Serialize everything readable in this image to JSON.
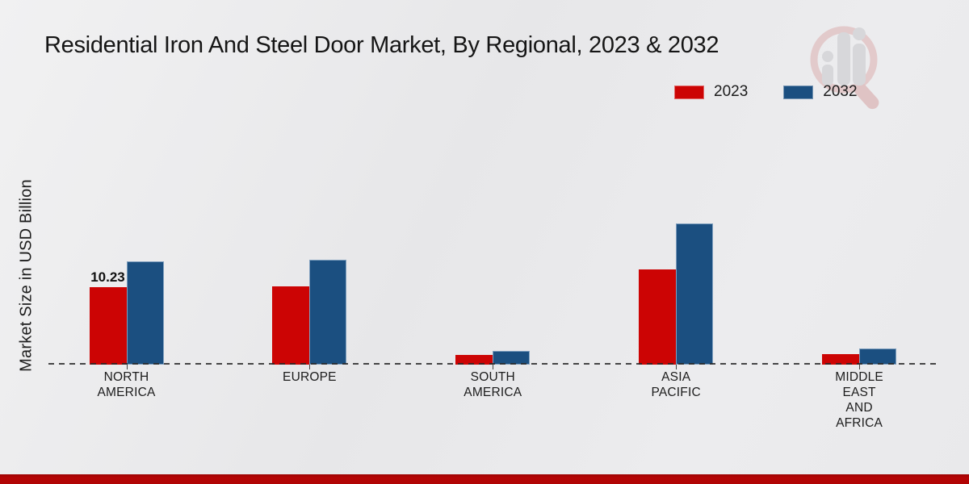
{
  "title": "Residential Iron And Steel Door Market, By Regional, 2023 & 2032",
  "y_axis_label": "Market Size in USD Billion",
  "legend": [
    {
      "label": "2023",
      "color": "#cc0404"
    },
    {
      "label": "2032",
      "color": "#1b4f80"
    }
  ],
  "colors": {
    "series_2023": "#cc0404",
    "series_2032": "#1b4f80",
    "footer_stripe": "#b20505",
    "background": "#e9e9eb"
  },
  "watermark_icon": "magnifier-bar-chart-logo",
  "chart_data": {
    "type": "bar",
    "title": "Residential Iron And Steel Door Market, By Regional, 2023 & 2032",
    "xlabel": "",
    "ylabel": "Market Size in USD Billion",
    "categories": [
      "NORTH AMERICA",
      "EUROPE",
      "SOUTH AMERICA",
      "ASIA PACIFIC",
      "MIDDLE EAST AND AFRICA"
    ],
    "category_label_lines": [
      "NORTH\nAMERICA",
      "EUROPE",
      "SOUTH\nAMERICA",
      "ASIA\nPACIFIC",
      "MIDDLE\nEAST\nAND\nAFRICA"
    ],
    "series": [
      {
        "name": "2023",
        "color": "#cc0404",
        "values": [
          10.23,
          10.4,
          1.25,
          12.65,
          1.4
        ]
      },
      {
        "name": "2032",
        "color": "#1b4f80",
        "values": [
          13.7,
          13.9,
          1.8,
          18.7,
          2.1
        ]
      }
    ],
    "data_labels": [
      {
        "series": "2023",
        "category_index": 0,
        "text": "10.23"
      }
    ],
    "ylim": [
      0,
      20
    ],
    "baseline_style": "dashed",
    "grid": false,
    "legend_position": "top-right"
  }
}
